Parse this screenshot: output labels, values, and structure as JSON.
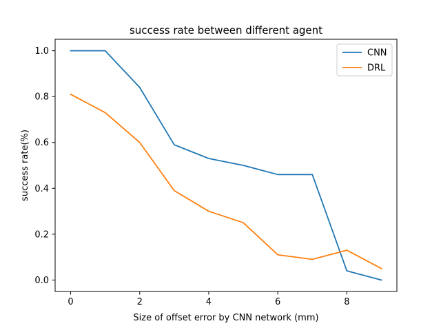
{
  "chart_data": {
    "type": "line",
    "title": "success rate between different agent",
    "xlabel": "Size of offset error by CNN network (mm)",
    "ylabel": "success rate(%)",
    "x": [
      0,
      1,
      2,
      3,
      4,
      5,
      6,
      7,
      8,
      9
    ],
    "series": [
      {
        "name": "CNN",
        "color": "#1f77b4",
        "values": [
          1.0,
          1.0,
          0.84,
          0.59,
          0.53,
          0.5,
          0.46,
          0.46,
          0.04,
          0.0
        ]
      },
      {
        "name": "DRL",
        "color": "#ff7f0e",
        "values": [
          0.81,
          0.73,
          0.6,
          0.39,
          0.3,
          0.25,
          0.11,
          0.09,
          0.13,
          0.05
        ]
      }
    ],
    "xticks": [
      "0",
      "2",
      "4",
      "6",
      "8"
    ],
    "yticks": [
      "0.0",
      "0.2",
      "0.4",
      "0.6",
      "0.8",
      "1.0"
    ],
    "xlim": [
      -0.45,
      9.45
    ],
    "ylim": [
      -0.05,
      1.05
    ],
    "grid": false,
    "legend_position": "top-right"
  }
}
